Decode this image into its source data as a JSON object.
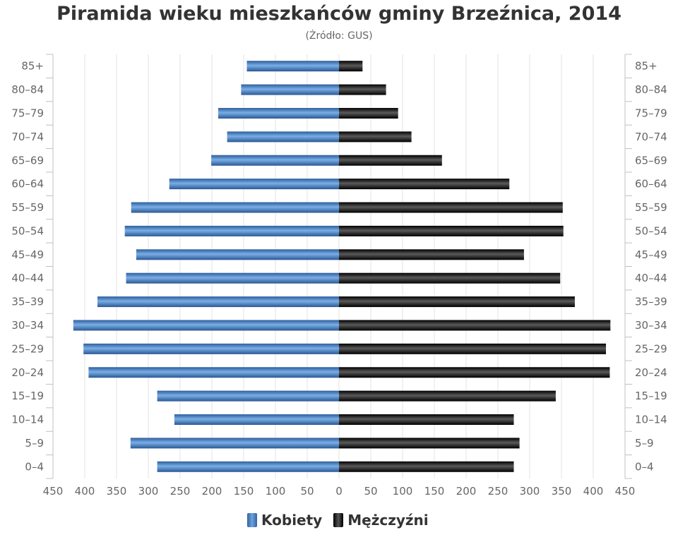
{
  "chart_data": {
    "type": "bar",
    "orientation": "horizontal-pyramid",
    "title": "Piramida wieku mieszkańców gminy Brzeźnica, 2014",
    "subtitle": "(Źródło: GUS)",
    "categories": [
      "85+",
      "80-84",
      "75-79",
      "70-74",
      "65-69",
      "60-64",
      "55-59",
      "50-54",
      "45-49",
      "40-44",
      "35-39",
      "30-34",
      "25-29",
      "20-24",
      "15-19",
      "10-14",
      "5-9",
      "0-4"
    ],
    "series": [
      {
        "name": "Kobiety",
        "values": [
          145,
          154,
          190,
          176,
          201,
          267,
          327,
          337,
          319,
          335,
          380,
          418,
          402,
          394,
          286,
          259,
          328,
          286
        ]
      },
      {
        "name": "Mężczyźni",
        "values": [
          37,
          74,
          93,
          114,
          162,
          268,
          352,
          353,
          291,
          348,
          371,
          427,
          420,
          426,
          341,
          275,
          284,
          275
        ]
      }
    ],
    "xlim": [
      -450,
      450
    ],
    "xticks": [
      450,
      400,
      350,
      300,
      250,
      200,
      150,
      100,
      50,
      0,
      50,
      100,
      150,
      200,
      250,
      300,
      350,
      400,
      450
    ],
    "grid": true,
    "legend_position": "bottom-center",
    "colors": {
      "Kobiety": "#3f7cc2",
      "Mężczyźni": "#1a1a1a"
    }
  }
}
